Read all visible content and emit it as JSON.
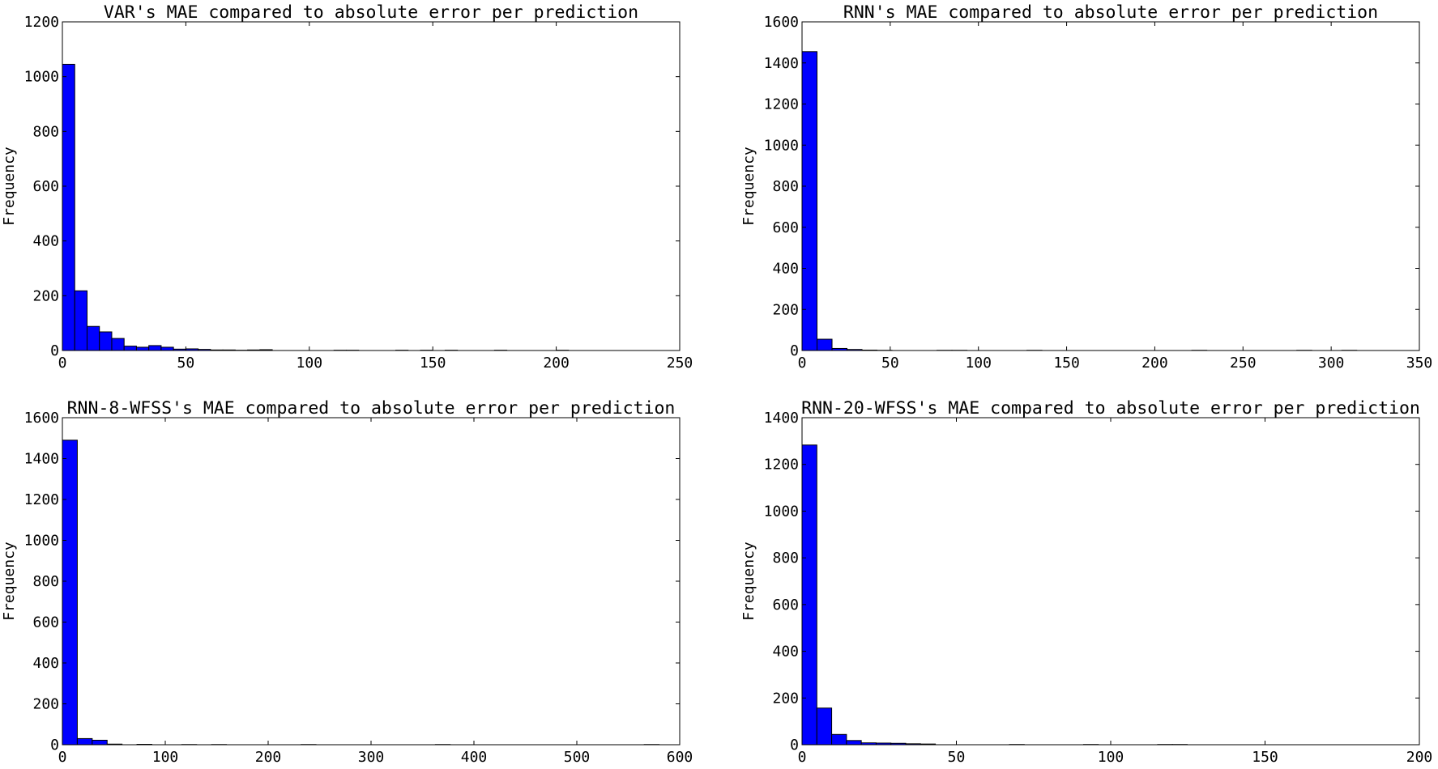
{
  "chart_data": [
    {
      "type": "bar",
      "title": "VAR's MAE compared to absolute error per prediction",
      "xlabel": "",
      "ylabel": "Frequency",
      "xlim": [
        0,
        250
      ],
      "ylim": [
        0,
        1200
      ],
      "xticks": [
        0,
        50,
        100,
        150,
        200,
        250
      ],
      "yticks": [
        0,
        200,
        400,
        600,
        800,
        1000,
        1200
      ],
      "grid": false,
      "bar_color": "#0000ff",
      "bins": [
        {
          "x0": 0,
          "x1": 5,
          "count": 1045
        },
        {
          "x0": 5,
          "x1": 10,
          "count": 218
        },
        {
          "x0": 10,
          "x1": 15,
          "count": 88
        },
        {
          "x0": 15,
          "x1": 20,
          "count": 68
        },
        {
          "x0": 20,
          "x1": 25,
          "count": 44
        },
        {
          "x0": 25,
          "x1": 30,
          "count": 16
        },
        {
          "x0": 30,
          "x1": 35,
          "count": 12
        },
        {
          "x0": 35,
          "x1": 40,
          "count": 18
        },
        {
          "x0": 40,
          "x1": 45,
          "count": 12
        },
        {
          "x0": 45,
          "x1": 50,
          "count": 5
        },
        {
          "x0": 50,
          "x1": 55,
          "count": 6
        },
        {
          "x0": 55,
          "x1": 60,
          "count": 4
        },
        {
          "x0": 60,
          "x1": 65,
          "count": 2
        },
        {
          "x0": 65,
          "x1": 70,
          "count": 2
        },
        {
          "x0": 70,
          "x1": 75,
          "count": 1
        },
        {
          "x0": 75,
          "x1": 80,
          "count": 2
        },
        {
          "x0": 80,
          "x1": 85,
          "count": 3
        },
        {
          "x0": 110,
          "x1": 115,
          "count": 1
        },
        {
          "x0": 115,
          "x1": 120,
          "count": 1
        },
        {
          "x0": 135,
          "x1": 140,
          "count": 1
        },
        {
          "x0": 145,
          "x1": 150,
          "count": 1
        },
        {
          "x0": 155,
          "x1": 160,
          "count": 1
        },
        {
          "x0": 175,
          "x1": 180,
          "count": 1
        },
        {
          "x0": 200,
          "x1": 205,
          "count": 1
        }
      ]
    },
    {
      "type": "bar",
      "title": "RNN's MAE compared to absolute error per prediction",
      "xlabel": "",
      "ylabel": "Frequency",
      "xlim": [
        0,
        350
      ],
      "ylim": [
        0,
        1600
      ],
      "xticks": [
        0,
        50,
        100,
        150,
        200,
        250,
        300,
        350
      ],
      "yticks": [
        0,
        200,
        400,
        600,
        800,
        1000,
        1200,
        1400,
        1600
      ],
      "grid": false,
      "bar_color": "#0000ff",
      "bins": [
        {
          "x0": 0,
          "x1": 8.5,
          "count": 1455
        },
        {
          "x0": 8.5,
          "x1": 17,
          "count": 55
        },
        {
          "x0": 17,
          "x1": 25.5,
          "count": 10
        },
        {
          "x0": 25.5,
          "x1": 34,
          "count": 5
        },
        {
          "x0": 34,
          "x1": 42.5,
          "count": 2
        },
        {
          "x0": 42.5,
          "x1": 51,
          "count": 1
        },
        {
          "x0": 76.5,
          "x1": 85,
          "count": 1
        },
        {
          "x0": 85,
          "x1": 93.5,
          "count": 1
        },
        {
          "x0": 127.5,
          "x1": 136,
          "count": 1
        },
        {
          "x0": 221,
          "x1": 229.5,
          "count": 1
        },
        {
          "x0": 280.5,
          "x1": 289,
          "count": 1
        },
        {
          "x0": 306,
          "x1": 314.5,
          "count": 1
        }
      ]
    },
    {
      "type": "bar",
      "title": "RNN-8-WFSS's MAE compared to absolute error per prediction",
      "xlabel": "",
      "ylabel": "Frequency",
      "xlim": [
        0,
        600
      ],
      "ylim": [
        0,
        1600
      ],
      "xticks": [
        0,
        100,
        200,
        300,
        400,
        500,
        600
      ],
      "yticks": [
        0,
        200,
        400,
        600,
        800,
        1000,
        1200,
        1400,
        1600
      ],
      "grid": false,
      "bar_color": "#0000ff",
      "bins": [
        {
          "x0": 0,
          "x1": 14.5,
          "count": 1490
        },
        {
          "x0": 14.5,
          "x1": 29,
          "count": 30
        },
        {
          "x0": 29,
          "x1": 43.5,
          "count": 22
        },
        {
          "x0": 43.5,
          "x1": 58,
          "count": 3
        },
        {
          "x0": 72.5,
          "x1": 87,
          "count": 2
        },
        {
          "x0": 116,
          "x1": 130.5,
          "count": 1
        },
        {
          "x0": 145,
          "x1": 159.5,
          "count": 1
        },
        {
          "x0": 232,
          "x1": 246.5,
          "count": 1
        },
        {
          "x0": 362.5,
          "x1": 377,
          "count": 1
        },
        {
          "x0": 565.5,
          "x1": 580,
          "count": 1
        }
      ]
    },
    {
      "type": "bar",
      "title": "RNN-20-WFSS's MAE compared to absolute error per prediction",
      "xlabel": "",
      "ylabel": "Frequency",
      "xlim": [
        0,
        200
      ],
      "ylim": [
        0,
        1400
      ],
      "xticks": [
        0,
        50,
        100,
        150,
        200
      ],
      "yticks": [
        0,
        200,
        400,
        600,
        800,
        1000,
        1200,
        1400
      ],
      "grid": false,
      "bar_color": "#0000ff",
      "bins": [
        {
          "x0": 0,
          "x1": 4.8,
          "count": 1283
        },
        {
          "x0": 4.8,
          "x1": 9.6,
          "count": 157
        },
        {
          "x0": 9.6,
          "x1": 14.4,
          "count": 44
        },
        {
          "x0": 14.4,
          "x1": 19.2,
          "count": 18
        },
        {
          "x0": 19.2,
          "x1": 24,
          "count": 8
        },
        {
          "x0": 24,
          "x1": 28.8,
          "count": 7
        },
        {
          "x0": 28.8,
          "x1": 33.6,
          "count": 6
        },
        {
          "x0": 33.6,
          "x1": 38.4,
          "count": 4
        },
        {
          "x0": 38.4,
          "x1": 43.2,
          "count": 3
        },
        {
          "x0": 67.2,
          "x1": 72,
          "count": 1
        },
        {
          "x0": 91.2,
          "x1": 96,
          "count": 1
        },
        {
          "x0": 115.2,
          "x1": 120,
          "count": 1
        },
        {
          "x0": 120,
          "x1": 124.8,
          "count": 1
        }
      ]
    }
  ]
}
